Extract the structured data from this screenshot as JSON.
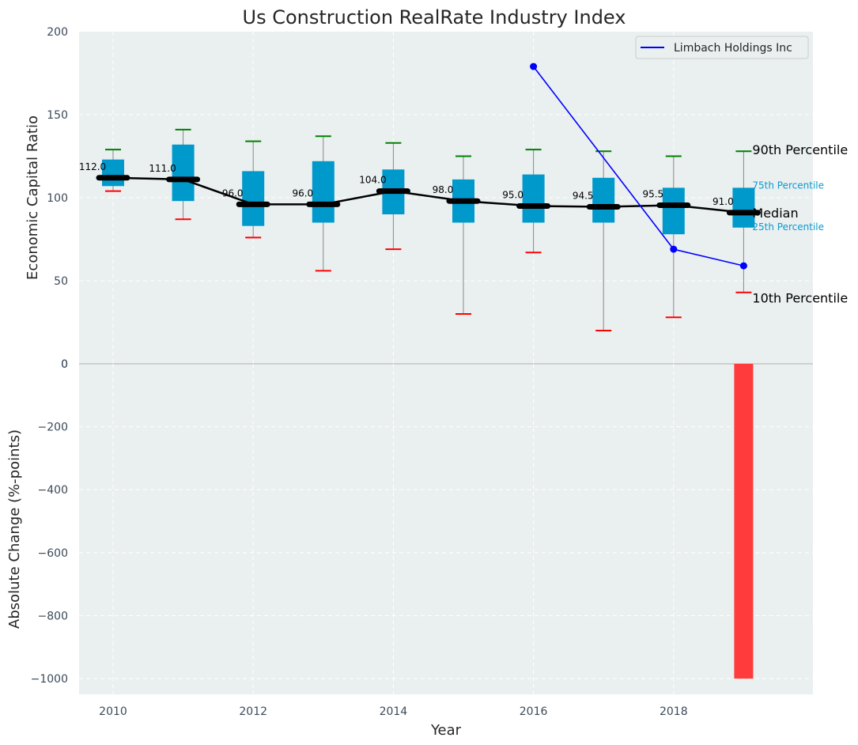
{
  "chart_data": [
    {
      "type": "box",
      "title": "Us Construction RealRate Industry Index",
      "xlabel": "",
      "ylabel": "Economic Capital Ratio",
      "ylim": [
        0,
        200
      ],
      "yticks": [
        0,
        50,
        100,
        150,
        200
      ],
      "grid": true,
      "x": [
        2010,
        2011,
        2012,
        2013,
        2014,
        2015,
        2016,
        2017,
        2018,
        2019
      ],
      "percentile_10": [
        104,
        87,
        76,
        56,
        69,
        30,
        67,
        20,
        28,
        43
      ],
      "percentile_25": [
        107,
        98,
        83,
        85,
        90,
        85,
        85,
        85,
        78,
        82
      ],
      "median": [
        112.0,
        111.0,
        96.0,
        96.0,
        104.0,
        98.0,
        95.0,
        94.5,
        95.5,
        91.0
      ],
      "percentile_75": [
        123,
        132,
        116,
        122,
        117,
        111,
        114,
        112,
        106,
        106
      ],
      "percentile_90": [
        129,
        141,
        134,
        137,
        133,
        125,
        129,
        128,
        125,
        128
      ],
      "median_labels": [
        "112.0",
        "111.0",
        "96.0",
        "96.0",
        "104.0",
        "98.0",
        "95.0",
        "94.5",
        "95.5",
        "91.0"
      ],
      "series": [
        {
          "name": "Limbach Holdings Inc",
          "x": [
            2016,
            2018,
            2019
          ],
          "y": [
            179,
            69,
            59
          ],
          "color": "#0000ff"
        }
      ],
      "annotations": {
        "p90": "90th Percentile",
        "p75": "75th Percentile",
        "median": "Median",
        "p25": "25th Percentile",
        "p10": "10th Percentile"
      },
      "legend_position": "top-right",
      "colors": {
        "box": "#0099cc",
        "median_line": "#000000",
        "whisker_high": "#008000",
        "whisker_low": "#ff0000",
        "panel_bg": "#eaeff0"
      }
    },
    {
      "type": "bar",
      "xlabel": "Year",
      "ylabel": "Absolute Change (%-points)",
      "ylim": [
        -1050,
        0
      ],
      "yticks": [
        0,
        -200,
        -400,
        -600,
        -800,
        -1000
      ],
      "xticks": [
        2010,
        2012,
        2014,
        2016,
        2018
      ],
      "x": [
        2019
      ],
      "values": [
        -1000
      ],
      "color": "#ff3b3b"
    }
  ]
}
